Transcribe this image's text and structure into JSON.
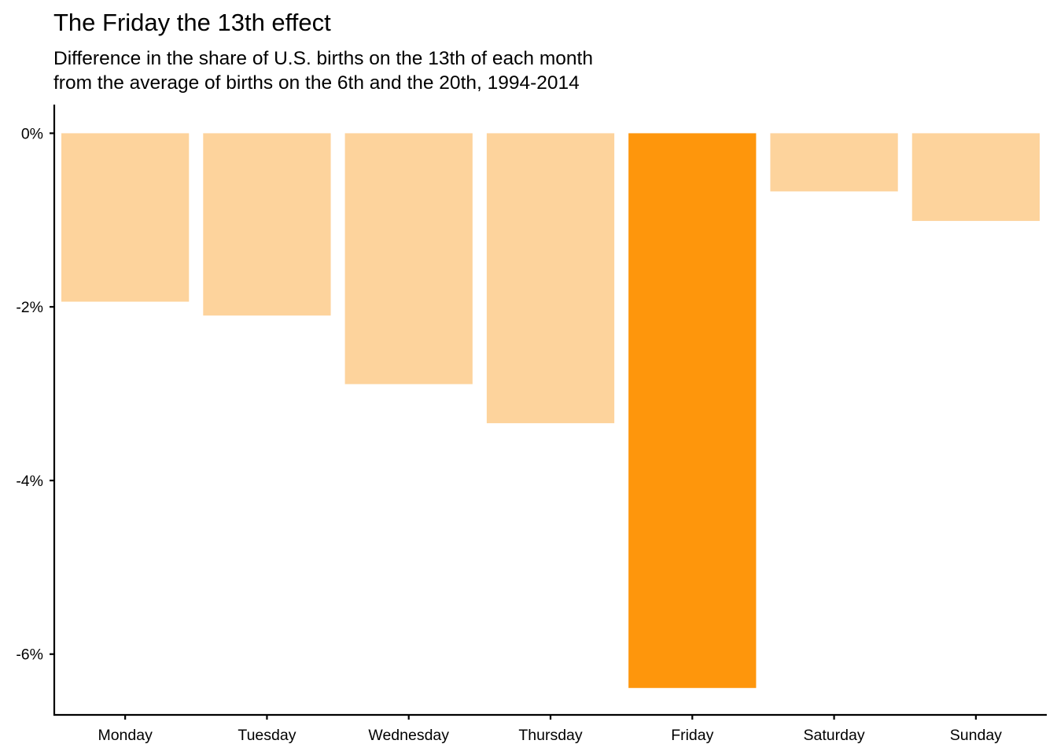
{
  "chart_data": {
    "type": "bar",
    "title": "The Friday the 13th effect",
    "subtitle_lines": [
      "Difference in the share of U.S. births on the 13th of each month",
      "from the average of births on the 6th and the 20th, 1994-2014"
    ],
    "xlabel": "",
    "ylabel": "",
    "categories": [
      "Monday",
      "Tuesday",
      "Wednesday",
      "Thursday",
      "Friday",
      "Saturday",
      "Sunday"
    ],
    "values": [
      -1.94,
      -2.1,
      -2.89,
      -3.34,
      -6.39,
      -0.67,
      -1.01
    ],
    "value_unit": "%",
    "highlight_category": "Friday",
    "colors": {
      "default": "#fdd39c",
      "highlight": "#fe960c",
      "axis": "#000000"
    },
    "yticks": [
      0,
      -2,
      -4,
      -6
    ],
    "ytick_labels": [
      "0%",
      "-2%",
      "-4%",
      "-6%"
    ],
    "ylim": [
      -6.7,
      0.33
    ],
    "grid": false,
    "legend": "none"
  }
}
